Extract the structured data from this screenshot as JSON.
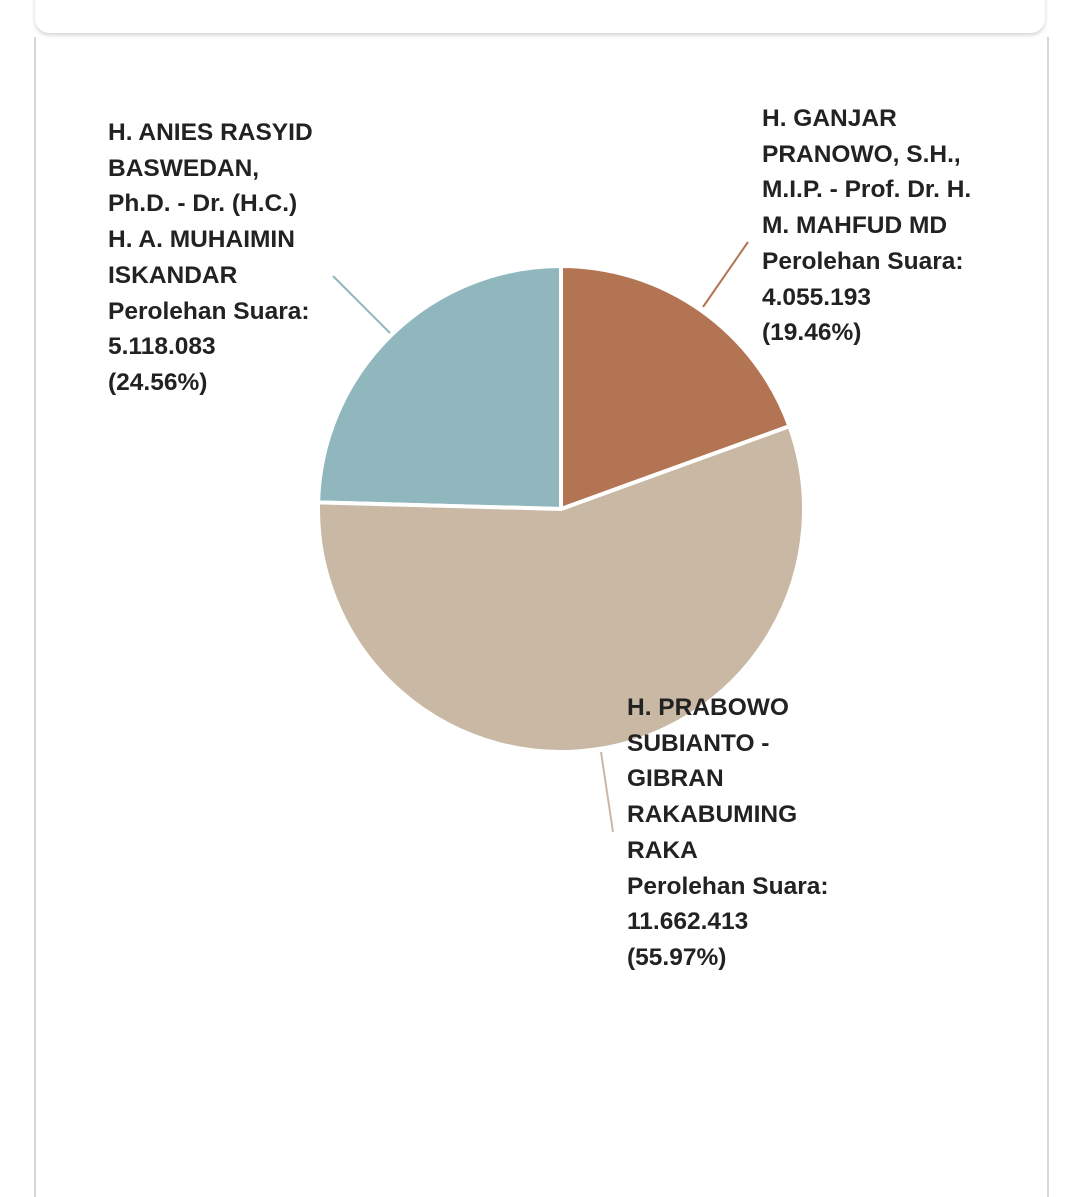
{
  "chart_data": {
    "type": "pie",
    "categories": [
      "H. GANJAR PRANOWO, S.H., M.I.P. - Prof. Dr. H. M. MAHFUD MD",
      "H. PRABOWO SUBIANTO - GIBRAN RAKABUMING RAKA",
      "H. ANIES RASYID BASWEDAN, Ph.D. - Dr. (H.C.) H. A. MUHAIMIN ISKANDAR"
    ],
    "value_caption": "Perolehan Suara:",
    "values": [
      4055193,
      11662413,
      5118083
    ],
    "value_labels": [
      "4.055.193",
      "11.662.413",
      "5.118.083"
    ],
    "percentages": [
      19.46,
      55.97,
      24.56
    ],
    "percentage_labels": [
      "(19.46%)",
      "(55.97%)",
      "(24.56%)"
    ],
    "colors": [
      "#b37453",
      "#c8b8a4",
      "#8fb7bd"
    ]
  }
}
